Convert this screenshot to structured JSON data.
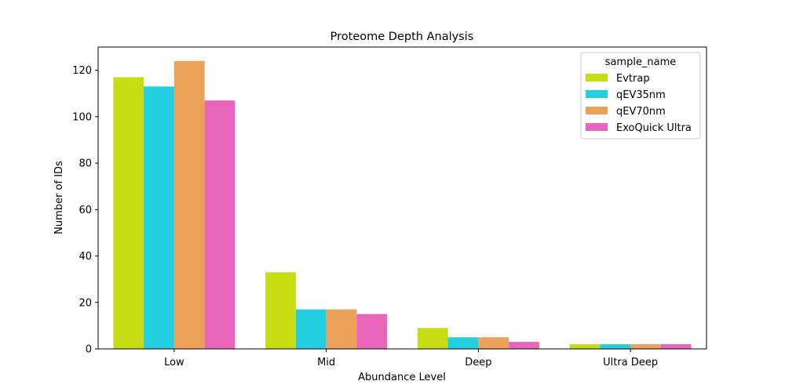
{
  "chart_data": {
    "type": "bar",
    "title": "Proteome Depth Analysis",
    "xlabel": "Abundance Level",
    "ylabel": "Number of IDs",
    "categories": [
      "Low",
      "Mid",
      "Deep",
      "Ultra Deep"
    ],
    "ylim": [
      0,
      130
    ],
    "yticks": [
      0,
      20,
      40,
      60,
      80,
      100,
      120
    ],
    "grid": false,
    "legend": {
      "title": "sample_name",
      "placement": "top-right"
    },
    "series": [
      {
        "name": "Evtrap",
        "color": "#c8dc14",
        "values": [
          117,
          33,
          9,
          2
        ]
      },
      {
        "name": "qEV35nm",
        "color": "#22cfe0",
        "values": [
          113,
          17,
          5,
          2
        ]
      },
      {
        "name": "qEV70nm",
        "color": "#eba15a",
        "values": [
          124,
          17,
          5,
          2
        ]
      },
      {
        "name": "ExoQuick Ultra",
        "color": "#e965b9",
        "values": [
          107,
          15,
          3,
          2
        ]
      }
    ]
  }
}
